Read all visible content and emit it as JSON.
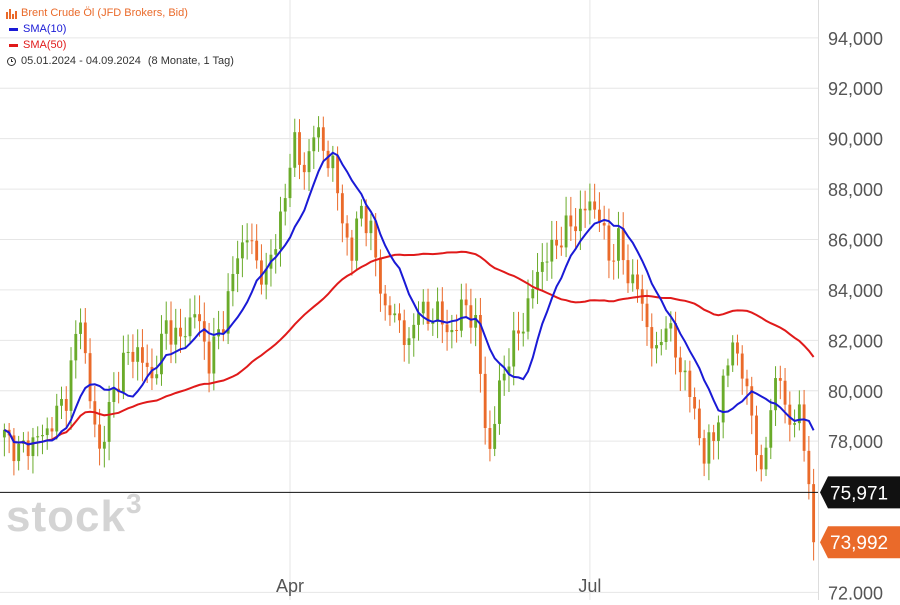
{
  "legend": {
    "instrument": "Brent Crude Öl (JFD Brokers, Bid)",
    "sma10_label": "SMA(10)",
    "sma50_label": "SMA(50)",
    "period": "05.01.2024 - 04.09.2024",
    "period_detail": "(8 Monate, 1 Tag)"
  },
  "watermark": "stock",
  "watermark_sup": "3",
  "colors": {
    "up": "#6aab2a",
    "down": "#ea6a2a",
    "sma10": "#1a1ad6",
    "sma50": "#e01a1a",
    "grid": "#e6e6e6",
    "axis_text": "#555555",
    "last_price_bg": "#ea6a2a",
    "marker_bg": "#111111"
  },
  "chart_data": {
    "type": "candlestick",
    "y_axis": {
      "position": "right",
      "ticks": [
        "94,000",
        "92,000",
        "90,000",
        "88,000",
        "86,000",
        "84,000",
        "82,000",
        "80,000",
        "78,000",
        "72,000"
      ],
      "tick_values": [
        94000,
        92000,
        90000,
        88000,
        86000,
        84000,
        82000,
        80000,
        78000,
        72000
      ],
      "range": [
        71700,
        95500
      ]
    },
    "x_axis": {
      "ticks": [
        {
          "label": "Apr",
          "index": 60
        },
        {
          "label": "Jul",
          "index": 123
        }
      ],
      "total_bars": 171
    },
    "reference_line": {
      "value": 75971,
      "label": "75,971"
    },
    "last_price": {
      "value": 73992,
      "label": "73,992"
    },
    "anchors": [
      [
        0,
        78.2
      ],
      [
        3,
        77.6
      ],
      [
        6,
        78.0
      ],
      [
        9,
        78.4
      ],
      [
        13,
        79.8
      ],
      [
        16,
        83.1
      ],
      [
        18,
        79.6
      ],
      [
        20,
        77.6
      ],
      [
        22,
        79.2
      ],
      [
        25,
        81.2
      ],
      [
        28,
        81.6
      ],
      [
        31,
        80.4
      ],
      [
        34,
        82.6
      ],
      [
        37,
        82.0
      ],
      [
        40,
        83.2
      ],
      [
        43,
        81.2
      ],
      [
        46,
        82.8
      ],
      [
        49,
        85.4
      ],
      [
        51,
        86.2
      ],
      [
        53,
        85.1
      ],
      [
        55,
        84.4
      ],
      [
        57,
        86.1
      ],
      [
        59,
        87.6
      ],
      [
        61,
        90.2
      ],
      [
        63,
        88.3
      ],
      [
        65,
        90.6
      ],
      [
        67,
        89.4
      ],
      [
        69,
        89.1
      ],
      [
        71,
        86.6
      ],
      [
        73,
        85.5
      ],
      [
        75,
        87.3
      ],
      [
        77,
        86.3
      ],
      [
        78,
        85.2
      ],
      [
        80,
        83.2
      ],
      [
        83,
        82.8
      ],
      [
        85,
        81.6
      ],
      [
        87,
        83.6
      ],
      [
        89,
        82.6
      ],
      [
        91,
        83.4
      ],
      [
        93,
        82.1
      ],
      [
        95,
        82.8
      ],
      [
        97,
        83.4
      ],
      [
        99,
        82.6
      ],
      [
        101,
        78.7
      ],
      [
        102,
        77.6
      ],
      [
        104,
        80.1
      ],
      [
        106,
        81.4
      ],
      [
        108,
        82.3
      ],
      [
        110,
        83.3
      ],
      [
        112,
        84.8
      ],
      [
        115,
        85.6
      ],
      [
        118,
        86.4
      ],
      [
        121,
        86.9
      ],
      [
        123,
        87.5
      ],
      [
        125,
        86.9
      ],
      [
        127,
        85.3
      ],
      [
        129,
        85.9
      ],
      [
        131,
        84.6
      ],
      [
        133,
        84.1
      ],
      [
        135,
        82.6
      ],
      [
        137,
        81.3
      ],
      [
        139,
        82.9
      ],
      [
        141,
        81.4
      ],
      [
        143,
        80.6
      ],
      [
        145,
        79.1
      ],
      [
        147,
        77.4
      ],
      [
        149,
        78.2
      ],
      [
        151,
        80.1
      ],
      [
        153,
        82.1
      ],
      [
        155,
        80.6
      ],
      [
        157,
        79.2
      ],
      [
        159,
        76.3
      ],
      [
        161,
        79.6
      ],
      [
        163,
        80.5
      ],
      [
        165,
        78.6
      ],
      [
        167,
        79.1
      ],
      [
        169,
        76.6
      ],
      [
        170,
        74.0
      ]
    ]
  }
}
